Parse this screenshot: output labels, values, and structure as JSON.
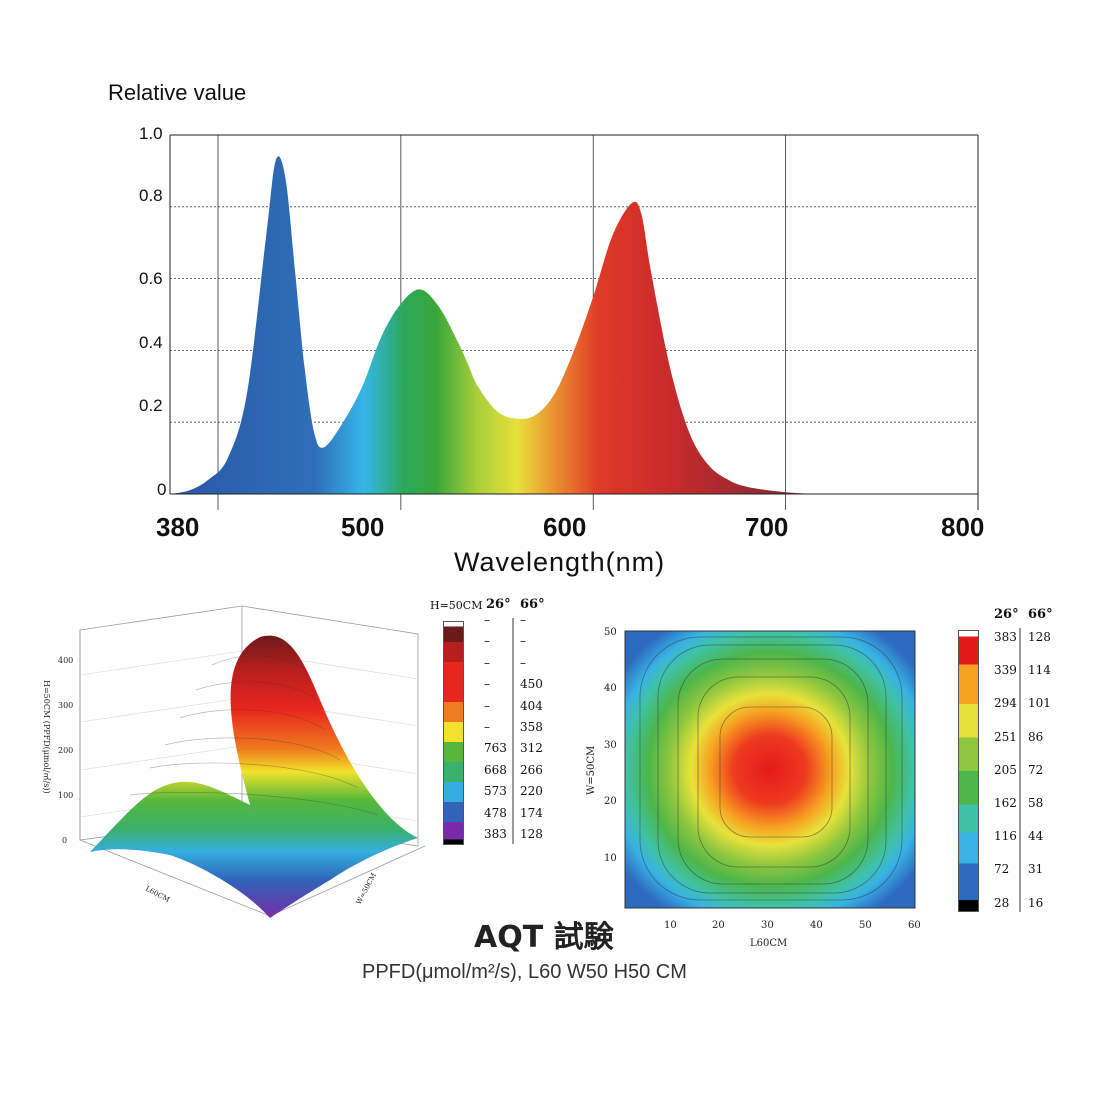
{
  "chart_data": [
    {
      "type": "area",
      "ylabel": "Relative value",
      "xlabel": "Wavelength(nm)",
      "ylim": [
        0,
        1.0
      ],
      "ytick_labels": [
        "0",
        "0.2",
        "0.4",
        "0.6",
        "0.8",
        "1.0"
      ],
      "xtick_labels": [
        "380",
        "500",
        "600",
        "700",
        "800"
      ],
      "grid": true,
      "series": [
        {
          "x": [
            380,
            390,
            400,
            410,
            420,
            430,
            435,
            440,
            445,
            450,
            455,
            460,
            470,
            480,
            490,
            500,
            510,
            520,
            530,
            535,
            540,
            550,
            560,
            570,
            580,
            590,
            600,
            610,
            620,
            625,
            630,
            640,
            650,
            660,
            670,
            680,
            700,
            720,
            740,
            760,
            780,
            800
          ],
          "y": [
            0.0,
            0.01,
            0.04,
            0.1,
            0.28,
            0.72,
            0.93,
            0.88,
            0.62,
            0.35,
            0.17,
            0.13,
            0.2,
            0.3,
            0.44,
            0.53,
            0.57,
            0.52,
            0.42,
            0.36,
            0.3,
            0.23,
            0.21,
            0.22,
            0.28,
            0.4,
            0.55,
            0.72,
            0.81,
            0.78,
            0.62,
            0.35,
            0.17,
            0.08,
            0.04,
            0.02,
            0.005,
            0.0,
            0.0,
            0.0,
            0.0,
            0.0
          ]
        }
      ]
    },
    {
      "type": "surface",
      "zlabel": "H=50CM (PPFD(μmol/㎡/s))",
      "xlabel": "L60CM",
      "ylabel": "W=50CM",
      "ztick_labels": [
        "0",
        "100",
        "200",
        "300",
        "400"
      ],
      "legend": {
        "title": "H=50CM",
        "col1_header": "26°",
        "col2_header": "66°",
        "col1": [
          "–",
          "–",
          "–",
          "–",
          "–",
          "–",
          "763",
          "668",
          "573",
          "478",
          "383"
        ],
        "col2": [
          "–",
          "–",
          "–",
          "450",
          "404",
          "358",
          "312",
          "266",
          "220",
          "174",
          "128"
        ]
      }
    },
    {
      "type": "heatmap",
      "xlabel": "L60CM",
      "ylabel": "W=50CM",
      "xtick_labels": [
        "10",
        "20",
        "30",
        "40",
        "50",
        "60"
      ],
      "ytick_labels": [
        "10",
        "20",
        "30",
        "40",
        "50"
      ],
      "legend": {
        "col1_header": "26°",
        "col2_header": "66°",
        "col1": [
          "383",
          "339",
          "294",
          "251",
          "205",
          "162",
          "116",
          "72",
          "28"
        ],
        "col2": [
          "128",
          "114",
          "101",
          "86",
          "72",
          "58",
          "44",
          "31",
          "16"
        ]
      }
    }
  ],
  "caption": {
    "title": "AQT 試験",
    "subtitle": "PPFD(μmol/m²/s), L60 W50 H50 CM"
  }
}
